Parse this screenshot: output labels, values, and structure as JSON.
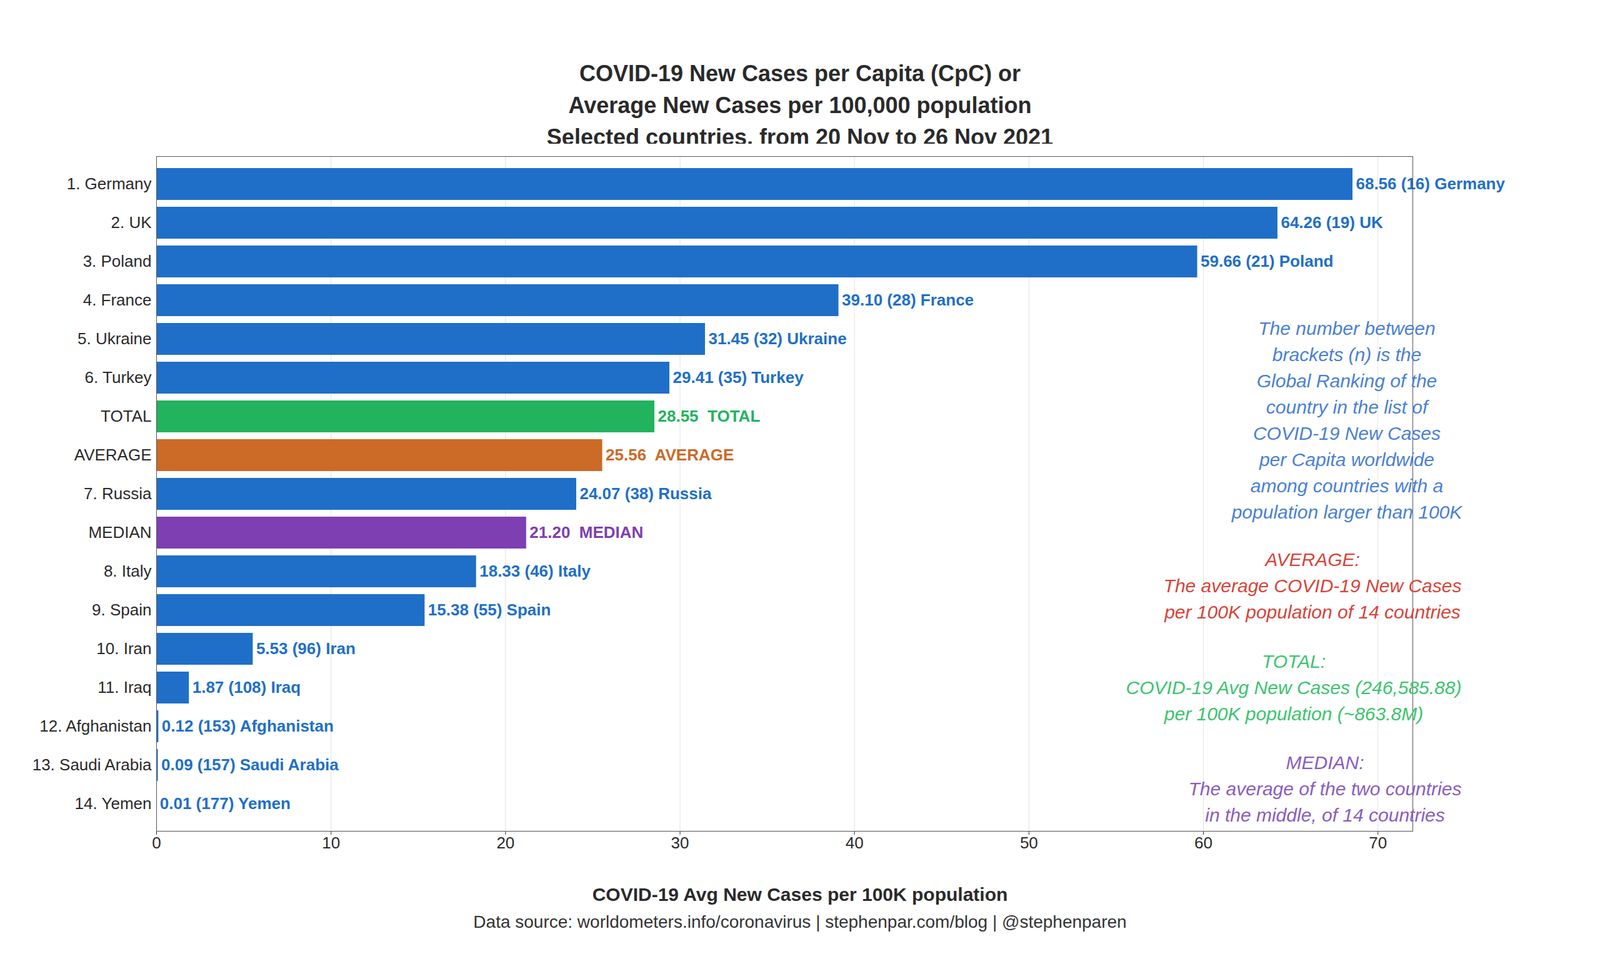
{
  "chart_data": {
    "type": "bar",
    "orientation": "horizontal",
    "title": "COVID-19 New Cases per Capita (CpC) or\nAverage New Cases per 100,000 population\nSelected countries, from 20 Nov to 26 Nov 2021",
    "xlabel": "COVID-19 Avg New Cases per 100K population",
    "caption": "Data source: worldometers.info/coronavirus | stephenpar.com/blog | @stephenparen",
    "categories": [
      "1. Germany",
      "2. UK",
      "3. Poland",
      "4. France",
      "5. Ukraine",
      "6. Turkey",
      "TOTAL",
      "AVERAGE",
      "7. Russia",
      "MEDIAN",
      "8. Italy",
      "9. Spain",
      "10. Iran",
      "11. Iraq",
      "12. Afghanistan",
      "13. Saudi Arabia",
      "14. Yemen"
    ],
    "values": [
      68.56,
      64.26,
      59.66,
      39.1,
      31.45,
      29.41,
      28.55,
      25.56,
      24.07,
      21.2,
      18.33,
      15.38,
      5.53,
      1.87,
      0.12,
      0.09,
      0.01
    ],
    "value_labels": [
      "68.56 (16) Germany",
      "64.26 (19) UK",
      "59.66 (21) Poland",
      "39.10 (28) France",
      "31.45 (32) Ukraine",
      "29.41 (35) Turkey",
      "28.55  TOTAL",
      "25.56  AVERAGE",
      "24.07 (38) Russia",
      "21.20  MEDIAN",
      "18.33 (46) Italy",
      "15.38 (55) Spain",
      "5.53 (96) Iran",
      "1.87 (108) Iraq",
      "0.12 (153) Afghanistan",
      "0.09 (157) Saudi Arabia",
      "0.01 (177) Yemen"
    ],
    "colors": [
      "#1f6fc8",
      "#1f6fc8",
      "#1f6fc8",
      "#1f6fc8",
      "#1f6fc8",
      "#1f6fc8",
      "#22b35e",
      "#cc6a27",
      "#1f6fc8",
      "#7d3fb2",
      "#1f6fc8",
      "#1f6fc8",
      "#1f6fc8",
      "#1f6fc8",
      "#1f6fc8",
      "#1f6fc8",
      "#1f6fc8"
    ],
    "data_labels": true,
    "xlim": [
      0,
      72
    ],
    "xticks": [
      0,
      10,
      20,
      30,
      40,
      50,
      60,
      70
    ],
    "grid": true,
    "annotations": [
      {
        "text": "The number between\nbrackets (n) is the\nGlobal Ranking of the\ncountry in the list of\nCOVID-19 New Cases\nper Capita worldwide\namong countries with a\npopulation larger than 100K",
        "color": "#4a80d4"
      },
      {
        "text": "AVERAGE:\nThe average COVID-19 New Cases\nper 100K population of 14 countries",
        "color": "#d9433a"
      },
      {
        "text": "TOTAL:\nCOVID-19 Avg New Cases (246,585.88)\nper 100K population (~863.8M)",
        "color": "#3cc46e"
      },
      {
        "text": "MEDIAN:\nThe average of the two countries\nin the middle, of 14 countries",
        "color": "#8a5cc0"
      }
    ]
  }
}
